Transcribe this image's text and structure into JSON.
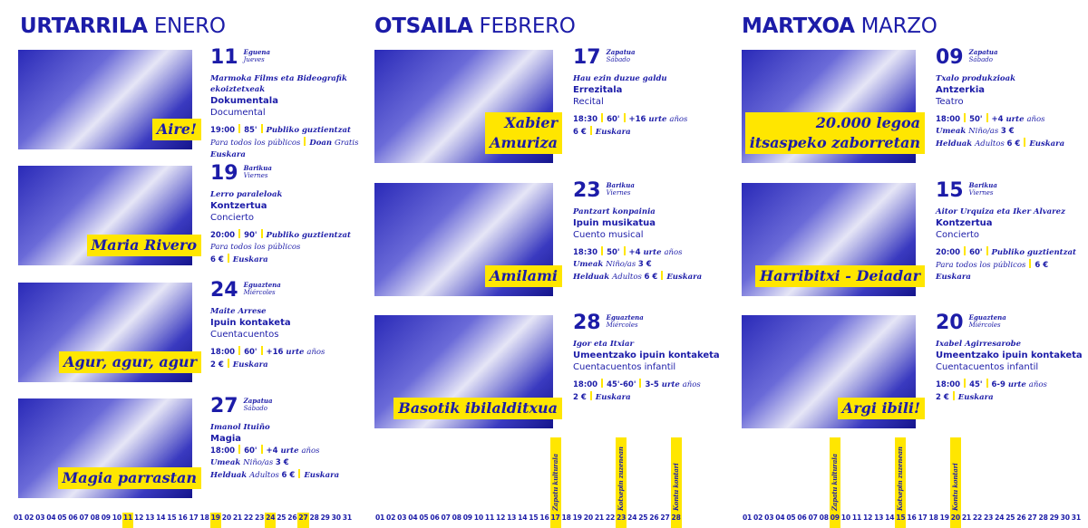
{
  "colors": {
    "brand_blue": "#1c1ca8",
    "accent_yellow": "#ffe600"
  },
  "months": [
    {
      "name_eu": "URTARRILA",
      "name_es": "ENERO",
      "days_in_month": 31,
      "highlight_days": [
        "11",
        "19",
        "24",
        "27"
      ],
      "calendar_labels": [],
      "events": [
        {
          "day": "11",
          "day_eu": "Eguena",
          "day_es": "Jueves",
          "image_title": "Aire!",
          "company": "Marmoka Films eta Bideografik ekoiztetxeak",
          "title_eu": "Dokumentala",
          "title_es": "Documental",
          "lines": [
            [
              [
                [
                  "19:00",
                  "b"
                ]
              ],
              [
                [
                  "85'",
                  "b"
                ]
              ],
              [
                [
                  "Publiko guztientzat",
                  "i"
                ]
              ]
            ],
            [
              [
                [
                  "Para todos los públicos",
                  "r"
                ]
              ],
              [
                [
                  "Doan ",
                  "i"
                ],
                [
                  "Gratis",
                  "r"
                ]
              ]
            ],
            [
              [
                [
                  "Euskara",
                  "i"
                ]
              ]
            ]
          ]
        },
        {
          "day": "19",
          "day_eu": "Barikua",
          "day_es": "Viernes",
          "image_title": "Maria Rivero",
          "company": "Lerro paraleloak",
          "title_eu": "Kontzertua",
          "title_es": "Concierto",
          "lines": [
            [
              [
                [
                  "20:00",
                  "b"
                ]
              ],
              [
                [
                  "90'",
                  "b"
                ]
              ],
              [
                [
                  "Publiko guztientzat",
                  "i"
                ]
              ]
            ],
            [
              [
                [
                  "Para todos los públicos",
                  "r"
                ]
              ]
            ],
            [
              [
                [
                  "6 €",
                  "b"
                ]
              ],
              [
                [
                  "Euskara",
                  "i"
                ]
              ]
            ]
          ]
        },
        {
          "day": "24",
          "day_eu": "Eguaztena",
          "day_es": "Miércoles",
          "image_title": "Agur, agur, agur",
          "company": "Maite Arrese",
          "title_eu": "Ipuin kontaketa",
          "title_es": "Cuentacuentos",
          "lines": [
            [
              [
                [
                  "18:00",
                  "b"
                ]
              ],
              [
                [
                  "60'",
                  "b"
                ]
              ],
              [
                [
                  "+16 ",
                  "b"
                ],
                [
                  "urte ",
                  "i"
                ],
                [
                  "años",
                  "r"
                ]
              ]
            ],
            [
              [
                [
                  "2 €",
                  "b"
                ]
              ],
              [
                [
                  "Euskara",
                  "i"
                ]
              ]
            ]
          ]
        },
        {
          "day": "27",
          "day_eu": "Zapatua",
          "day_es": "Sábado",
          "image_title": "Magia parrastan",
          "company": "Imanol Ituiño",
          "title_eu": "Magia",
          "title_es": "",
          "lines": [
            [
              [
                [
                  "18:00",
                  "b"
                ]
              ],
              [
                [
                  "60'",
                  "b"
                ]
              ],
              [
                [
                  "+4 ",
                  "b"
                ],
                [
                  "urte ",
                  "i"
                ],
                [
                  "años",
                  "r"
                ]
              ]
            ],
            [
              [
                [
                  "Umeak ",
                  "i"
                ],
                [
                  "Niño/as ",
                  "r"
                ],
                [
                  "3 €",
                  "b"
                ]
              ]
            ],
            [
              [
                [
                  "Helduak ",
                  "i"
                ],
                [
                  "Adultos ",
                  "r"
                ],
                [
                  "6 €",
                  "b"
                ]
              ],
              [
                [
                  "Euskara",
                  "i"
                ]
              ]
            ]
          ]
        }
      ]
    },
    {
      "name_eu": "OTSAILA",
      "name_es": "FEBRERO",
      "days_in_month": 28,
      "highlight_days": [
        "17",
        "23",
        "28"
      ],
      "calendar_labels": [
        {
          "day": "17",
          "label": "Zapatu kulturala"
        },
        {
          "day": "23",
          "label": "Kotxepin zuzenean"
        },
        {
          "day": "28",
          "label": "Kontu kontari"
        }
      ],
      "events": [
        {
          "day": "17",
          "day_eu": "Zapatua",
          "day_es": "Sábado",
          "image_title": "Xabier\nAmuriza",
          "company": "Hau ezin duzue galdu",
          "title_eu": "Errezitala",
          "title_es": "Recital",
          "lines": [
            [
              [
                [
                  "18:30",
                  "b"
                ]
              ],
              [
                [
                  "60'",
                  "b"
                ]
              ],
              [
                [
                  "+16 ",
                  "b"
                ],
                [
                  "urte ",
                  "i"
                ],
                [
                  "años",
                  "r"
                ]
              ]
            ],
            [
              [
                [
                  "6 €",
                  "b"
                ]
              ],
              [
                [
                  "Euskara",
                  "i"
                ]
              ]
            ]
          ]
        },
        {
          "day": "23",
          "day_eu": "Barikua",
          "day_es": "Viernes",
          "image_title": "Amilami",
          "company": "Pantzart konpainia",
          "title_eu": "Ipuin musikatua",
          "title_es": "Cuento musical",
          "lines": [
            [
              [
                [
                  "18:30",
                  "b"
                ]
              ],
              [
                [
                  "50'",
                  "b"
                ]
              ],
              [
                [
                  "+4 ",
                  "b"
                ],
                [
                  "urte ",
                  "i"
                ],
                [
                  "años",
                  "r"
                ]
              ]
            ],
            [
              [
                [
                  "Umeak ",
                  "i"
                ],
                [
                  "Niño/as ",
                  "r"
                ],
                [
                  "3 €",
                  "b"
                ]
              ]
            ],
            [
              [
                [
                  "Helduak ",
                  "i"
                ],
                [
                  "Adultos ",
                  "r"
                ],
                [
                  "6 €",
                  "b"
                ]
              ],
              [
                [
                  "Euskara",
                  "i"
                ]
              ]
            ]
          ]
        },
        {
          "day": "28",
          "day_eu": "Eguaztena",
          "day_es": "Miércoles",
          "image_title": "Basotik ibilalditxua",
          "company": "Igor eta Itxiar",
          "title_eu": "Umeentzako ipuin kontaketa",
          "title_es": "Cuentacuentos infantil",
          "lines": [
            [
              [
                [
                  "18:00",
                  "b"
                ]
              ],
              [
                [
                  "45'-60'",
                  "b"
                ]
              ],
              [
                [
                  "3-5 ",
                  "b"
                ],
                [
                  "urte ",
                  "i"
                ],
                [
                  "años",
                  "r"
                ]
              ]
            ],
            [
              [
                [
                  "2 €",
                  "b"
                ]
              ],
              [
                [
                  "Euskara",
                  "i"
                ]
              ]
            ]
          ]
        }
      ]
    },
    {
      "name_eu": "MARTXOA",
      "name_es": "MARZO",
      "days_in_month": 31,
      "highlight_days": [
        "09",
        "15",
        "20"
      ],
      "calendar_labels": [
        {
          "day": "09",
          "label": "Zapatu kulturala"
        },
        {
          "day": "15",
          "label": "Kotxepin zuzenean"
        },
        {
          "day": "20",
          "label": "Kontu kontari"
        }
      ],
      "events": [
        {
          "day": "09",
          "day_eu": "Zapatua",
          "day_es": "Sábado",
          "image_title": "20.000 legoa\nitsaspeko zaborretan",
          "company": "Txalo produkzioak",
          "title_eu": "Antzerkia",
          "title_es": "Teatro",
          "lines": [
            [
              [
                [
                  "18:00",
                  "b"
                ]
              ],
              [
                [
                  "50'",
                  "b"
                ]
              ],
              [
                [
                  "+4 ",
                  "b"
                ],
                [
                  "urte ",
                  "i"
                ],
                [
                  "años",
                  "r"
                ]
              ]
            ],
            [
              [
                [
                  "Umeak ",
                  "i"
                ],
                [
                  "Niño/as ",
                  "r"
                ],
                [
                  "3 €",
                  "b"
                ]
              ]
            ],
            [
              [
                [
                  "Helduak ",
                  "i"
                ],
                [
                  "Adultos ",
                  "r"
                ],
                [
                  "6 €",
                  "b"
                ]
              ],
              [
                [
                  "Euskara",
                  "i"
                ]
              ]
            ]
          ]
        },
        {
          "day": "15",
          "day_eu": "Barikua",
          "day_es": "Viernes",
          "image_title": "Harribitxi - Deiadar",
          "company": "Aitor Urquiza eta Iker Alvarez",
          "title_eu": "Kontzertua",
          "title_es": "Concierto",
          "lines": [
            [
              [
                [
                  "20:00",
                  "b"
                ]
              ],
              [
                [
                  "60'",
                  "b"
                ]
              ],
              [
                [
                  "Publiko guztientzat",
                  "i"
                ]
              ]
            ],
            [
              [
                [
                  "Para todos los públicos",
                  "r"
                ]
              ],
              [
                [
                  "6 €",
                  "b"
                ]
              ]
            ],
            [
              [
                [
                  "Euskara",
                  "i"
                ]
              ]
            ]
          ]
        },
        {
          "day": "20",
          "day_eu": "Eguaztena",
          "day_es": "Miércoles",
          "image_title": "Argi ibili!",
          "company": "Ixabel Agirresarobe",
          "title_eu": "Umeentzako ipuin kontaketa",
          "title_es": "Cuentacuentos infantil",
          "lines": [
            [
              [
                [
                  "18:00",
                  "b"
                ]
              ],
              [
                [
                  "45'",
                  "b"
                ]
              ],
              [
                [
                  "6-9 ",
                  "b"
                ],
                [
                  "urte ",
                  "i"
                ],
                [
                  "años",
                  "r"
                ]
              ]
            ],
            [
              [
                [
                  "2 €",
                  "b"
                ]
              ],
              [
                [
                  "Euskara",
                  "i"
                ]
              ]
            ]
          ]
        }
      ]
    }
  ]
}
